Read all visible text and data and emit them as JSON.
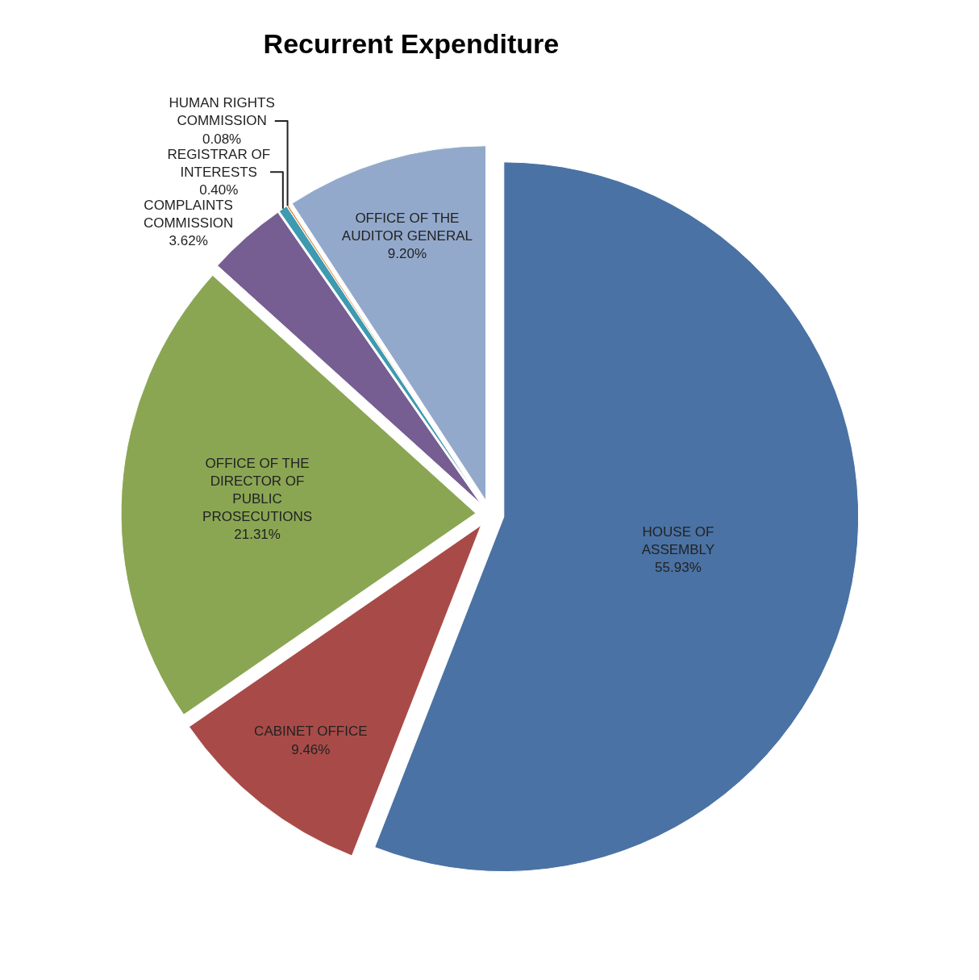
{
  "chart_data": {
    "type": "pie",
    "title": "Recurrent Expenditure",
    "categories": [
      "HOUSE OF ASSEMBLY",
      "CABINET OFFICE",
      "OFFICE OF THE DIRECTOR OF PUBLIC PROSECUTIONS",
      "COMPLAINTS COMMISSION",
      "REGISTRAR OF INTERESTS",
      "HUMAN RIGHTS COMMISSION",
      "OFFICE OF THE AUDITOR GENERAL"
    ],
    "values": [
      55.93,
      9.46,
      21.31,
      3.62,
      0.4,
      0.08,
      9.2
    ],
    "value_labels": [
      "55.93%",
      "9.46%",
      "21.31%",
      "3.62%",
      "0.40%",
      "0.08%",
      "9.20%"
    ],
    "colors": [
      "#4a72a4",
      "#a84b48",
      "#8aa653",
      "#765e92",
      "#3d9ab0",
      "#d9843b",
      "#93a9cc"
    ],
    "legend": false
  }
}
